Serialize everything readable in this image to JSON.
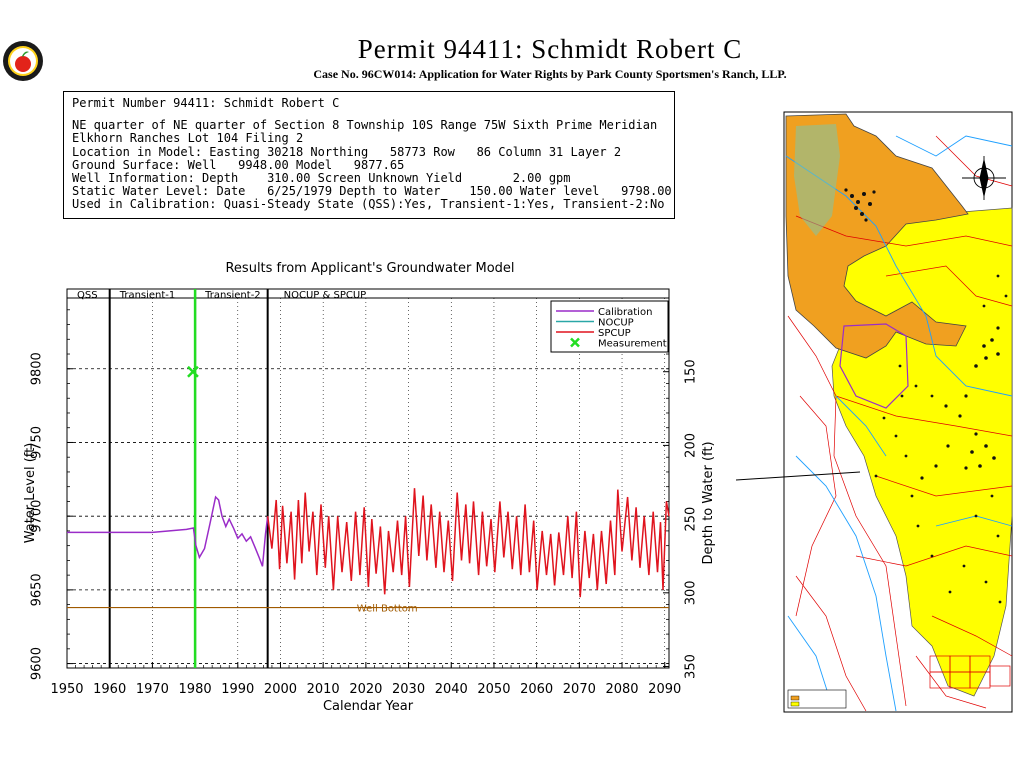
{
  "header": {
    "title": "Permit  94411:  Schmidt Robert C",
    "subtitle": "Case No. 96CW014: Application for Water Rights by Park County Sportsmen's Ranch, LLP."
  },
  "info": {
    "line1": "Permit Number 94411: Schmidt Robert C",
    "line2": "NE quarter of NE quarter of Section 8 Township 10S Range 75W Sixth Prime Meridian",
    "line3": "Elkhorn Ranches Lot 104 Filing 2",
    "line4": "Location in Model: Easting 30218 Northing   58773 Row   86 Column 31 Layer 2",
    "line5": "Ground Surface: Well   9948.00 Model   9877.65",
    "line6": "Well Information: Depth    310.00 Screen Unknown Yield       2.00 gpm",
    "line7": "Static Water Level: Date   6/25/1979 Depth to Water    150.00 Water level   9798.00",
    "line8": "Used in Calibration: Quasi-Steady State (QSS):Yes, Transient-1:Yes, Transient-2:No"
  },
  "chart_data": {
    "type": "line",
    "title": "Results from Applicant's Groundwater Model",
    "xlabel": "Calendar Year",
    "ylabel": "Water Level (ft)",
    "y2label": "Depth to Water (ft)",
    "xlim": [
      1950,
      2091
    ],
    "ylim": [
      9597,
      9848
    ],
    "x_ticks": [
      "1950",
      "1960",
      "1970",
      "1980",
      "1990",
      "2000",
      "2010",
      "2020",
      "2030",
      "2040",
      "2050",
      "2060",
      "2070",
      "2080",
      "2090"
    ],
    "y_ticks": [
      "9600",
      "9650",
      "9700",
      "9750",
      "9800"
    ],
    "y2_ticks": [
      "150",
      "200",
      "250",
      "300",
      "350"
    ],
    "grid": true,
    "legend_position": "top-right",
    "periods": [
      {
        "label": "QSS",
        "start": 1950,
        "end": 1960
      },
      {
        "label": "Transient-1",
        "start": 1960,
        "end": 1980
      },
      {
        "label": "Transient-2",
        "start": 1980,
        "end": 1997
      },
      {
        "label": "NOCUP  &  SPCUP",
        "start": 1997,
        "end": 2091
      }
    ],
    "well_bottom": {
      "label": "Well Bottom",
      "value": 9638
    },
    "legend": [
      {
        "label": "Calibration",
        "color": "#9a2cc8"
      },
      {
        "label": "NOCUP",
        "color": "#2aa7a7"
      },
      {
        "label": "SPCUP",
        "color": "#e0141e"
      },
      {
        "label": "Measurement",
        "color": "#22dd22"
      }
    ],
    "series": [
      {
        "name": "Calibration",
        "color": "#9a2cc8",
        "x": [
          1950,
          1958,
          1962,
          1967,
          1970,
          1974,
          1978,
          1979.6,
          1980.2,
          1981,
          1982.2,
          1983.5,
          1984.8,
          1985.5,
          1986.3,
          1987.2,
          1988,
          1989,
          1990,
          1991,
          1992,
          1993,
          1994,
          1995,
          1995.8,
          1996.5,
          1997
        ],
        "y": [
          9689,
          9689,
          9689,
          9689,
          9689,
          9690,
          9691,
          9692,
          9680,
          9672,
          9678,
          9695,
          9713,
          9711,
          9700,
          9693,
          9698,
          9692,
          9685,
          9688,
          9683,
          9686,
          9679,
          9672,
          9666,
          9688,
          9700
        ]
      },
      {
        "name": "SPCUP",
        "color": "#e0141e",
        "x": [
          1997,
          1998,
          1999,
          1999.8,
          2000.5,
          2001.5,
          2002.5,
          2003.3,
          2004.2,
          2005,
          2005.8,
          2006.7,
          2007.6,
          2008.5,
          2009.5,
          2010.5,
          2011.3,
          2012.4,
          2013.4,
          2014.4,
          2015.5,
          2016.6,
          2017.6,
          2018.6,
          2019.6,
          2020.6,
          2021.4,
          2022.4,
          2023.4,
          2024.4,
          2025.3,
          2026.4,
          2027.4,
          2028.4,
          2029.3,
          2030.2,
          2031.4,
          2032.4,
          2033.4,
          2034.3,
          2035.3,
          2036.4,
          2037.3,
          2038.3,
          2039.3,
          2040.3,
          2041.4,
          2042.4,
          2043.4,
          2044.3,
          2045.2,
          2046.4,
          2047.3,
          2048.3,
          2049.3,
          2050.2,
          2051.4,
          2052.3,
          2053.3,
          2054.3,
          2055.3,
          2056.3,
          2057.3,
          2058.3,
          2059.3,
          2060.1,
          2061.3,
          2062.3,
          2063.3,
          2064.2,
          2065.2,
          2066.3,
          2067.3,
          2068.3,
          2069.3,
          2070.2,
          2071.3,
          2072.3,
          2073.3,
          2074.2,
          2075.2,
          2076.3,
          2077.3,
          2078.3,
          2079,
          2080,
          2081.3,
          2082.3,
          2083.3,
          2084.2,
          2085.2,
          2086.3,
          2087.3,
          2088.3,
          2089,
          2089.6,
          2090.4,
          2091
        ],
        "y": [
          9700,
          9678,
          9711,
          9664,
          9707,
          9668,
          9703,
          9657,
          9711,
          9668,
          9716,
          9676,
          9703,
          9660,
          9708,
          9665,
          9700,
          9650,
          9700,
          9662,
          9696,
          9656,
          9703,
          9660,
          9706,
          9652,
          9698,
          9661,
          9693,
          9647,
          9690,
          9662,
          9697,
          9660,
          9700,
          9652,
          9719,
          9673,
          9714,
          9670,
          9708,
          9665,
          9703,
          9662,
          9697,
          9656,
          9716,
          9670,
          9708,
          9668,
          9710,
          9660,
          9703,
          9666,
          9698,
          9662,
          9710,
          9672,
          9703,
          9664,
          9700,
          9660,
          9708,
          9662,
          9697,
          9650,
          9690,
          9660,
          9688,
          9653,
          9689,
          9660,
          9700,
          9658,
          9703,
          9645,
          9690,
          9658,
          9688,
          9650,
          9690,
          9654,
          9697,
          9660,
          9718,
          9676,
          9713,
          9670,
          9706,
          9665,
          9700,
          9660,
          9703,
          9662,
          9696,
          9650,
          9710,
          9700
        ]
      }
    ],
    "measurement": {
      "name": "Measurement",
      "x": 1979.5,
      "y": 9798
    }
  },
  "map": {
    "colors": {
      "layer1": "#f0a020",
      "layer2": "#ffff00",
      "rivers": "#1fa0ff",
      "roads": "#e00000",
      "outline": "#000000"
    }
  }
}
